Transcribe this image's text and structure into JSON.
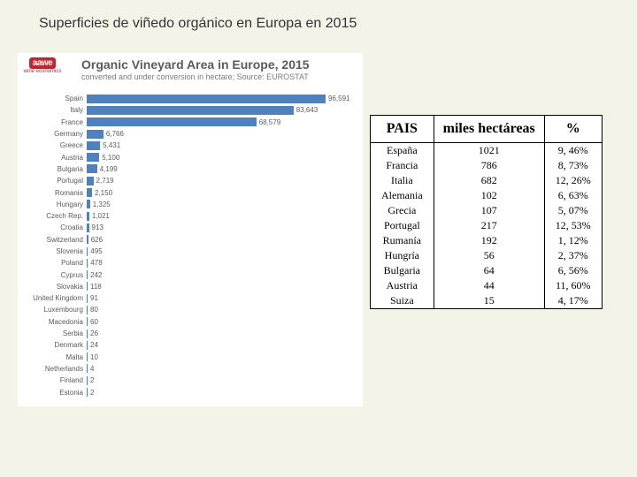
{
  "page_title": "Superficies de viñedo orgánico en Europa  en 2015",
  "logo": {
    "top": "aawe",
    "bottom": "wine economics"
  },
  "chart": {
    "type": "bar",
    "title": "Organic Vineyard Area in Europe, 2015",
    "subtitle": "converted and under conversion in hectare; Source: EUROSTAT",
    "title_color": "#5b5b5b",
    "bar_color": "#4f81bd",
    "background_color": "#ffffff",
    "label_fontsize": 8,
    "value_fontsize": 8,
    "max_value": 96591,
    "bars": [
      {
        "label": "Spain",
        "value": 96591,
        "display": "96,591"
      },
      {
        "label": "Italy",
        "value": 83643,
        "display": "83,643"
      },
      {
        "label": "France",
        "value": 68579,
        "display": "68,579"
      },
      {
        "label": "Germany",
        "value": 6766,
        "display": "6,766"
      },
      {
        "label": "Greece",
        "value": 5431,
        "display": "5,431"
      },
      {
        "label": "Austria",
        "value": 5100,
        "display": "5,100"
      },
      {
        "label": "Bulgaria",
        "value": 4199,
        "display": "4,199"
      },
      {
        "label": "Portugal",
        "value": 2719,
        "display": "2,719"
      },
      {
        "label": "Romania",
        "value": 2150,
        "display": "2,150"
      },
      {
        "label": "Hungary",
        "value": 1325,
        "display": "1,325"
      },
      {
        "label": "Czech Rep.",
        "value": 1021,
        "display": "1,021"
      },
      {
        "label": "Croatia",
        "value": 913,
        "display": "913"
      },
      {
        "label": "Switzerland",
        "value": 626,
        "display": "626"
      },
      {
        "label": "Slovenia",
        "value": 495,
        "display": "495"
      },
      {
        "label": "Poland",
        "value": 478,
        "display": "478"
      },
      {
        "label": "Cyprus",
        "value": 242,
        "display": "242"
      },
      {
        "label": "Slovakia",
        "value": 118,
        "display": "118"
      },
      {
        "label": "United Kingdom",
        "value": 91,
        "display": "91"
      },
      {
        "label": "Luxembourg",
        "value": 80,
        "display": "80"
      },
      {
        "label": "Macedonia",
        "value": 60,
        "display": "60"
      },
      {
        "label": "Serbia",
        "value": 26,
        "display": "26"
      },
      {
        "label": "Denmark",
        "value": 24,
        "display": "24"
      },
      {
        "label": "Malta",
        "value": 10,
        "display": "10"
      },
      {
        "label": "Netherlands",
        "value": 4,
        "display": "4"
      },
      {
        "label": "Finland",
        "value": 2,
        "display": "2"
      },
      {
        "label": "Estonia",
        "value": 2,
        "display": "2"
      }
    ]
  },
  "table": {
    "columns": [
      "PAIS",
      "miles hectáreas",
      "%"
    ],
    "rows": [
      [
        "España",
        "1021",
        "9, 46%"
      ],
      [
        "Francia",
        "786",
        "8, 73%"
      ],
      [
        "Italia",
        "682",
        "12, 26%"
      ],
      [
        "Alemania",
        "102",
        "6, 63%"
      ],
      [
        "Grecia",
        "107",
        "5, 07%"
      ],
      [
        "Portugal",
        "217",
        "12, 53%"
      ],
      [
        "Rumanía",
        "192",
        "1, 12%"
      ],
      [
        "Hungría",
        "56",
        "2, 37%"
      ],
      [
        "Bulgaria",
        "64",
        "6, 56%"
      ],
      [
        "Austria",
        "44",
        "11, 60%"
      ],
      [
        "Suiza",
        "15",
        "4, 17%"
      ]
    ]
  }
}
